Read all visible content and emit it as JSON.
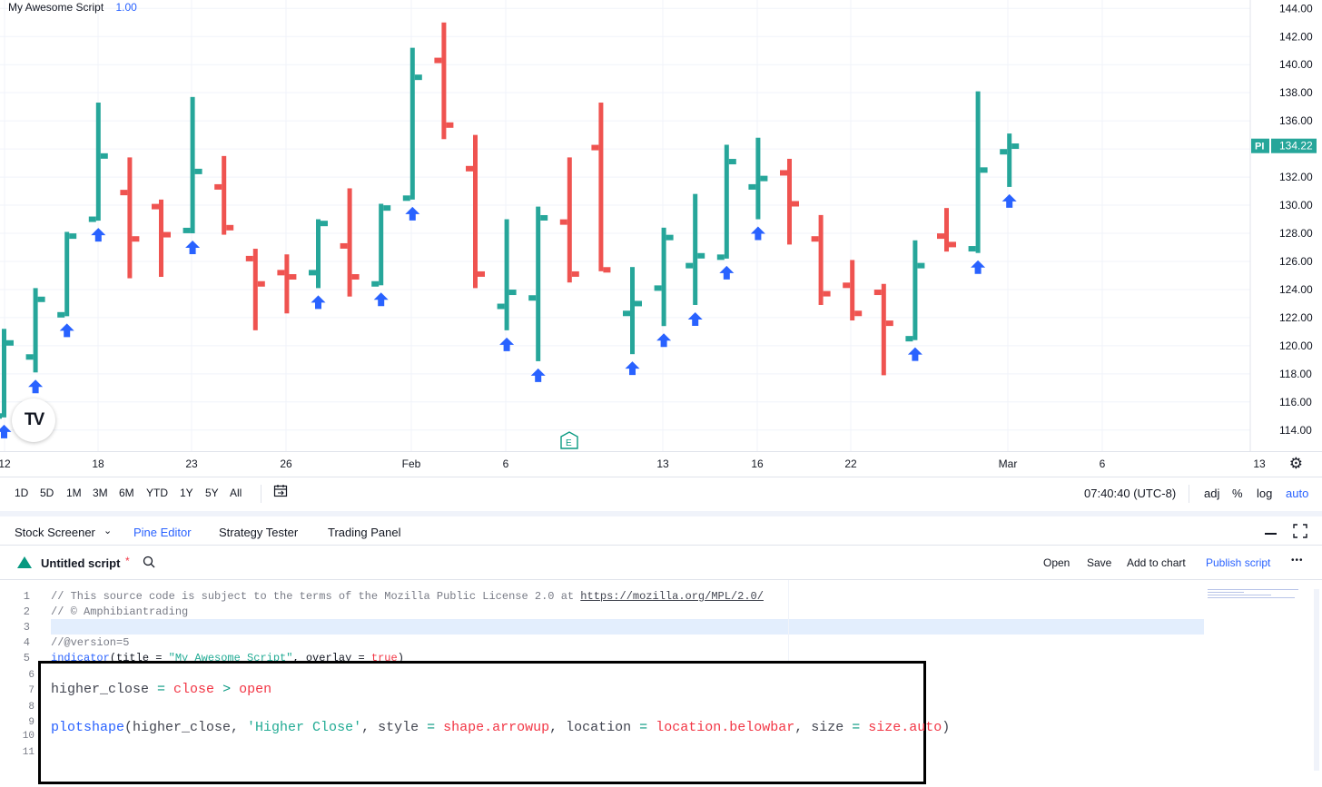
{
  "legend": {
    "name": "My Awesome Script",
    "value": "1.00"
  },
  "colors": {
    "up": "#26a69a",
    "down": "#ef5350",
    "arrow": "#2962ff",
    "accent": "#2962ff"
  },
  "chart_data": {
    "type": "ohlc",
    "ylim": [
      112.5,
      144.6
    ],
    "y_ticks": [
      "114.00",
      "116.00",
      "118.00",
      "120.00",
      "122.00",
      "124.00",
      "126.00",
      "128.00",
      "130.00",
      "132.00",
      "134.00",
      "136.00",
      "138.00",
      "140.00",
      "142.00",
      "144.00"
    ],
    "x_labels": [
      "12",
      "18",
      "23",
      "26",
      "Feb",
      "6",
      "13",
      "16",
      "22",
      "Mar",
      "6",
      "13"
    ],
    "price_label": {
      "tag": "PI",
      "value": "134.22"
    },
    "bars": [
      {
        "o": 115,
        "h": 121.2,
        "l": 114.9,
        "c": 120.2
      },
      {
        "o": 119.2,
        "h": 124.1,
        "l": 118.1,
        "c": 123.3
      },
      {
        "o": 122.2,
        "h": 128.1,
        "l": 122.1,
        "c": 127.8
      },
      {
        "o": 129.0,
        "h": 137.3,
        "l": 128.9,
        "c": 133.5
      },
      {
        "o": 130.9,
        "h": 133.4,
        "l": 124.8,
        "c": 127.6
      },
      {
        "o": 129.9,
        "h": 130.4,
        "l": 124.9,
        "c": 127.9
      },
      {
        "o": 128.2,
        "h": 137.7,
        "l": 128.0,
        "c": 132.4
      },
      {
        "o": 131.3,
        "h": 133.5,
        "l": 127.9,
        "c": 128.4
      },
      {
        "o": 126.2,
        "h": 126.9,
        "l": 121.1,
        "c": 124.4
      },
      {
        "o": 125.2,
        "h": 126.5,
        "l": 122.3,
        "c": 124.9
      },
      {
        "o": 125.2,
        "h": 129.0,
        "l": 124.1,
        "c": 128.7
      },
      {
        "o": 127.1,
        "h": 131.2,
        "l": 123.5,
        "c": 124.9
      },
      {
        "o": 124.4,
        "h": 130.1,
        "l": 124.3,
        "c": 129.8
      },
      {
        "o": 130.5,
        "h": 141.2,
        "l": 130.4,
        "c": 139.1
      },
      {
        "o": 140.3,
        "h": 143.0,
        "l": 134.7,
        "c": 135.7
      },
      {
        "o": 132.6,
        "h": 135.0,
        "l": 124.1,
        "c": 125.1
      },
      {
        "o": 122.8,
        "h": 129.0,
        "l": 121.1,
        "c": 123.8
      },
      {
        "o": 123.4,
        "h": 129.9,
        "l": 118.9,
        "c": 129.1
      },
      {
        "o": 128.8,
        "h": 133.4,
        "l": 124.5,
        "c": 125.1
      },
      {
        "o": 134.1,
        "h": 137.3,
        "l": 125.3,
        "c": 125.4
      },
      {
        "o": 122.3,
        "h": 125.6,
        "l": 119.4,
        "c": 123.0
      },
      {
        "o": 124.1,
        "h": 128.4,
        "l": 121.4,
        "c": 127.7
      },
      {
        "o": 125.7,
        "h": 130.8,
        "l": 122.9,
        "c": 126.4
      },
      {
        "o": 126.3,
        "h": 134.3,
        "l": 126.2,
        "c": 133.1
      },
      {
        "o": 131.3,
        "h": 134.8,
        "l": 129.0,
        "c": 131.9
      },
      {
        "o": 132.3,
        "h": 133.3,
        "l": 127.2,
        "c": 130.1
      },
      {
        "o": 127.6,
        "h": 129.3,
        "l": 122.9,
        "c": 123.7
      },
      {
        "o": 124.3,
        "h": 126.1,
        "l": 121.8,
        "c": 122.3
      },
      {
        "o": 123.8,
        "h": 124.4,
        "l": 117.9,
        "c": 121.6
      },
      {
        "o": 120.5,
        "h": 127.5,
        "l": 120.4,
        "c": 125.7
      },
      {
        "o": 127.8,
        "h": 129.8,
        "l": 126.7,
        "c": 127.2
      },
      {
        "o": 126.9,
        "h": 138.1,
        "l": 126.6,
        "c": 132.5
      },
      {
        "o": 133.8,
        "h": 135.1,
        "l": 131.3,
        "c": 134.2
      }
    ],
    "arrows_below": [
      true,
      true,
      true,
      true,
      false,
      false,
      true,
      false,
      false,
      false,
      true,
      false,
      true,
      true,
      false,
      false,
      true,
      true,
      false,
      false,
      true,
      true,
      true,
      true,
      true,
      false,
      false,
      false,
      false,
      true,
      false,
      true,
      true
    ],
    "earnings_marker": "E"
  },
  "toolbar": {
    "ranges": [
      "1D",
      "5D",
      "1M",
      "3M",
      "6M",
      "YTD",
      "1Y",
      "5Y",
      "All"
    ],
    "time": "07:40:40 (UTC-8)",
    "adj": "adj",
    "percent": "%",
    "log": "log",
    "auto": "auto"
  },
  "panel_tabs": [
    "Stock Screener",
    "Pine Editor",
    "Strategy Tester",
    "Trading Panel"
  ],
  "script": {
    "title": "Untitled script",
    "modified": "*",
    "actions": [
      "Open",
      "Save",
      "Add to chart",
      "Publish script"
    ],
    "more": "•••"
  },
  "editor": {
    "line_numbers": [
      "1",
      "2",
      "3",
      "4",
      "5"
    ],
    "line1_text": "// This source code is subject to the terms of the Mozilla Public License 2.0 at ",
    "line1_link": "https://mozilla.org/MPL/2.0/",
    "line2": "// © Amphibiantrading",
    "line4": "//@version=5",
    "line5_fn": "indicator",
    "line5_a": "(title = ",
    "line5_str": "\"My Awesome Script\"",
    "line5_b": ", overlay = ",
    "line5_kw": "true",
    "line5_c": ")"
  },
  "zoom": {
    "line_numbers": [
      "6",
      "7",
      "8",
      "9",
      "10",
      "11"
    ],
    "l7_a": "higher_close",
    "l7_eq": " = ",
    "l7_close": "close",
    "l7_gt": " > ",
    "l7_open": "open",
    "l10_fn": "plotshape",
    "l10_a": "(higher_close, ",
    "l10_str": "'Higher Close'",
    "l10_b": ", style ",
    "l10_eq1": "=",
    "l10_shape": " shape.arrowup",
    "l10_c": ", location ",
    "l10_eq2": "=",
    "l10_loc": " location.belowbar",
    "l10_d": ", size ",
    "l10_eq3": "=",
    "l10_size": " size.auto",
    "l10_e": ")"
  }
}
